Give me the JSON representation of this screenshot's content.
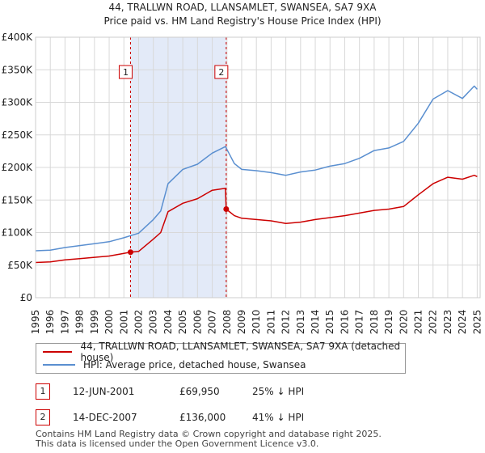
{
  "chart_data": {
    "type": "line",
    "title": "44, TRALLWN ROAD, LLANSAMLET, SWANSEA, SA7 9XA",
    "subtitle": "Price paid vs. HM Land Registry's House Price Index (HPI)",
    "xlabel": "",
    "ylabel": "",
    "xlim": [
      1995,
      2025.2
    ],
    "ylim": [
      0,
      400000
    ],
    "x_ticks": [
      1995,
      1996,
      1997,
      1998,
      1999,
      2000,
      2001,
      2002,
      2003,
      2004,
      2005,
      2006,
      2007,
      2008,
      2009,
      2010,
      2011,
      2012,
      2013,
      2014,
      2015,
      2016,
      2017,
      2018,
      2019,
      2020,
      2021,
      2022,
      2023,
      2024,
      2025
    ],
    "y_ticks": [
      {
        "value": 0,
        "label": "£0"
      },
      {
        "value": 50000,
        "label": "£50K"
      },
      {
        "value": 100000,
        "label": "£100K"
      },
      {
        "value": 150000,
        "label": "£150K"
      },
      {
        "value": 200000,
        "label": "£200K"
      },
      {
        "value": 250000,
        "label": "£250K"
      },
      {
        "value": 300000,
        "label": "£300K"
      },
      {
        "value": 350000,
        "label": "£350K"
      },
      {
        "value": 400000,
        "label": "£400K"
      }
    ],
    "grid": true,
    "series": [
      {
        "name": "44, TRALLWN ROAD, LLANSAMLET, SWANSEA, SA7 9XA (detached house)",
        "color": "#cc0000",
        "x": [
          1995,
          1996,
          1997,
          1998,
          1999,
          2000,
          2001,
          2001.45,
          2002,
          2003,
          2003.5,
          2004,
          2005,
          2006,
          2007,
          2007.9,
          2007.95,
          2008.5,
          2009,
          2010,
          2011,
          2012,
          2013,
          2014,
          2015,
          2016,
          2017,
          2018,
          2019,
          2020,
          2021,
          2022,
          2023,
          2024,
          2024.8,
          2025
        ],
        "values": [
          54000,
          55000,
          58000,
          60000,
          62000,
          64000,
          68000,
          69950,
          71000,
          90000,
          100000,
          132000,
          145000,
          152000,
          165000,
          168000,
          136000,
          126000,
          122000,
          120000,
          118000,
          114000,
          116000,
          120000,
          123000,
          126000,
          130000,
          134000,
          136000,
          140000,
          158000,
          175000,
          185000,
          182000,
          188000,
          186000
        ]
      },
      {
        "name": "HPI: Average price, detached house, Swansea",
        "color": "#5a8fd0",
        "x": [
          1995,
          1996,
          1997,
          1998,
          1999,
          2000,
          2001,
          2002,
          2003,
          2003.5,
          2004,
          2005,
          2006,
          2007,
          2007.9,
          2008.5,
          2009,
          2010,
          2011,
          2012,
          2013,
          2014,
          2015,
          2016,
          2017,
          2018,
          2019,
          2020,
          2021,
          2022,
          2023,
          2024,
          2024.8,
          2025
        ],
        "values": [
          72000,
          73000,
          77000,
          80000,
          83000,
          86000,
          92000,
          99000,
          120000,
          133000,
          175000,
          197000,
          205000,
          222000,
          232000,
          206000,
          197000,
          195000,
          192000,
          188000,
          193000,
          196000,
          202000,
          206000,
          214000,
          226000,
          230000,
          240000,
          268000,
          305000,
          318000,
          306000,
          325000,
          320000
        ]
      }
    ],
    "annotations": [
      {
        "label": "1",
        "x": 2001.45,
        "value": 69950
      },
      {
        "label": "2",
        "x": 2007.95,
        "value": 136000
      }
    ]
  },
  "legend": {
    "items": [
      {
        "label": "44, TRALLWN ROAD, LLANSAMLET, SWANSEA, SA7 9XA (detached house)",
        "color": "#cc0000"
      },
      {
        "label": "HPI: Average price, detached house, Swansea",
        "color": "#5a8fd0"
      }
    ]
  },
  "transactions": [
    {
      "id": "1",
      "date": "12-JUN-2001",
      "price": "£69,950",
      "hpi": "25% ↓ HPI"
    },
    {
      "id": "2",
      "date": "14-DEC-2007",
      "price": "£136,000",
      "hpi": "41% ↓ HPI"
    }
  ],
  "footer": {
    "line1": "Contains HM Land Registry data © Crown copyright and database right 2025.",
    "line2": "This data is licensed under the Open Government Licence v3.0."
  }
}
